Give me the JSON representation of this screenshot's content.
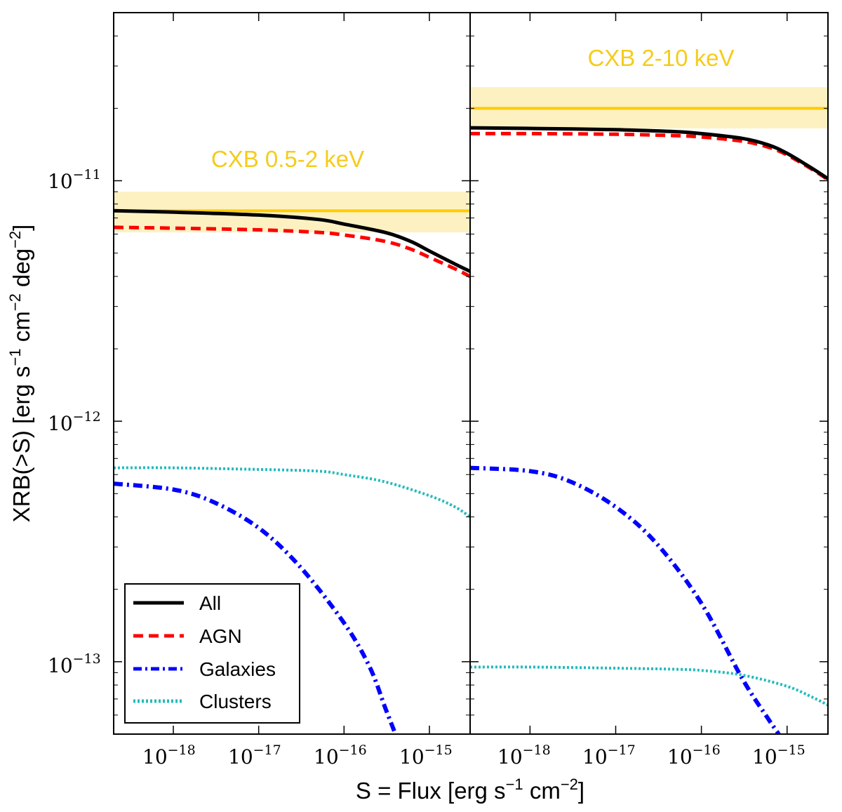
{
  "chart_data": {
    "type": "line",
    "ylabel": {
      "base": "XRB(>S) [erg s",
      "exp1": "−1",
      "mid": " cm",
      "exp2": "−2",
      "tail": " deg",
      "exp3": "−2",
      "end": "]"
    },
    "xlabel": {
      "base": "S = Flux [erg s",
      "exp1": "−1",
      "mid": " cm",
      "exp2": "−2",
      "end": "]"
    },
    "x_scale": "log",
    "y_scale": "log",
    "xlim": [
      2e-19,
      3e-15
    ],
    "ylim": [
      5e-14,
      5e-11
    ],
    "x_ticks": [
      {
        "value": 1e-18,
        "base": "10",
        "exp": "−18"
      },
      {
        "value": 1e-17,
        "base": "10",
        "exp": "−17"
      },
      {
        "value": 1e-16,
        "base": "10",
        "exp": "−16"
      },
      {
        "value": 1e-15,
        "base": "10",
        "exp": "−15"
      }
    ],
    "y_ticks": [
      {
        "value": 1e-11,
        "base": "10",
        "exp": "−11"
      },
      {
        "value": 1e-12,
        "base": "10",
        "exp": "−12"
      },
      {
        "value": 1e-13,
        "base": "10",
        "exp": "−13"
      }
    ],
    "colors": {
      "band": "#fdf1c2",
      "cxb": "#ffcc00",
      "annot": "#f5cc1a",
      "all": "#000000",
      "agn": "#ff0000",
      "galaxies": "#0000ff",
      "clusters": "#22bbbb"
    },
    "legend": {
      "position": "lower-left",
      "entries": [
        {
          "label": "All",
          "style": "solid",
          "color": "#000000"
        },
        {
          "label": "AGN",
          "style": "dashed",
          "color": "#ff0000"
        },
        {
          "label": "Galaxies",
          "style": "dashdot",
          "color": "#0000ff"
        },
        {
          "label": "Clusters",
          "style": "dotted",
          "color": "#22bbbb"
        }
      ]
    },
    "panels": [
      {
        "annotation": "CXB 0.5-2 keV",
        "cxb_value": 7.5e-12,
        "cxb_band": [
          6.1e-12,
          9e-12
        ],
        "series": [
          {
            "name": "All",
            "x": [
              2e-19,
              1e-18,
              1e-17,
              5e-17,
              1e-16,
              3e-16,
              6e-16,
              1e-15,
              2e-15,
              3e-15
            ],
            "y": [
              7.5e-12,
              7.4e-12,
              7.2e-12,
              6.9e-12,
              6.6e-12,
              6.1e-12,
              5.6e-12,
              5.1e-12,
              4.5e-12,
              4.2e-12
            ]
          },
          {
            "name": "AGN",
            "x": [
              2e-19,
              1e-18,
              1e-17,
              5e-17,
              1e-16,
              3e-16,
              6e-16,
              1e-15,
              2e-15,
              3e-15
            ],
            "y": [
              6.4e-12,
              6.35e-12,
              6.25e-12,
              6.1e-12,
              5.95e-12,
              5.6e-12,
              5.2e-12,
              4.8e-12,
              4.3e-12,
              4e-12
            ]
          },
          {
            "name": "Galaxies",
            "x": [
              2e-19,
              1e-18,
              3e-18,
              1e-17,
              3e-17,
              1e-16,
              2e-16,
              3e-16,
              4e-16
            ],
            "y": [
              5.5e-13,
              5.2e-13,
              4.6e-13,
              3.6e-13,
              2.5e-13,
              1.45e-13,
              9.5e-14,
              6.5e-14,
              5e-14
            ]
          },
          {
            "name": "Clusters",
            "x": [
              2e-19,
              1e-18,
              1e-17,
              5e-17,
              1e-16,
              3e-16,
              1e-15,
              2e-15,
              3e-15
            ],
            "y": [
              6.4e-13,
              6.4e-13,
              6.3e-13,
              6.2e-13,
              6e-13,
              5.6e-13,
              4.9e-13,
              4.4e-13,
              4e-13
            ]
          }
        ]
      },
      {
        "annotation": "CXB 2-10 keV",
        "cxb_value": 2e-11,
        "cxb_band": [
          1.65e-11,
          2.45e-11
        ],
        "series": [
          {
            "name": "All",
            "x": [
              2e-19,
              1e-18,
              1e-17,
              5e-17,
              1e-16,
              3e-16,
              6e-16,
              1e-15,
              2e-15,
              3e-15
            ],
            "y": [
              1.66e-11,
              1.65e-11,
              1.63e-11,
              1.6e-11,
              1.57e-11,
              1.5e-11,
              1.41e-11,
              1.3e-11,
              1.12e-11,
              1.02e-11
            ]
          },
          {
            "name": "AGN",
            "x": [
              2e-19,
              1e-18,
              1e-17,
              5e-17,
              1e-16,
              3e-16,
              6e-16,
              1e-15,
              2e-15,
              3e-15
            ],
            "y": [
              1.57e-11,
              1.57e-11,
              1.56e-11,
              1.54e-11,
              1.52e-11,
              1.46e-11,
              1.38e-11,
              1.28e-11,
              1.11e-11,
              1.01e-11
            ]
          },
          {
            "name": "Galaxies",
            "x": [
              2e-19,
              1e-18,
              3e-18,
              1e-17,
              3e-17,
              1e-16,
              3e-16,
              6e-16,
              8e-16
            ],
            "y": [
              6.4e-13,
              6.2e-13,
              5.6e-13,
              4.4e-13,
              3.1e-13,
              1.75e-13,
              8.5e-14,
              5.8e-14,
              5e-14
            ]
          },
          {
            "name": "Clusters",
            "x": [
              2e-19,
              1e-18,
              1e-17,
              5e-17,
              1e-16,
              3e-16,
              1e-15,
              2e-15,
              3e-15
            ],
            "y": [
              9.5e-14,
              9.5e-14,
              9.4e-14,
              9.3e-14,
              9.2e-14,
              8.8e-14,
              7.9e-14,
              7.1e-14,
              6.6e-14
            ]
          }
        ]
      }
    ]
  }
}
